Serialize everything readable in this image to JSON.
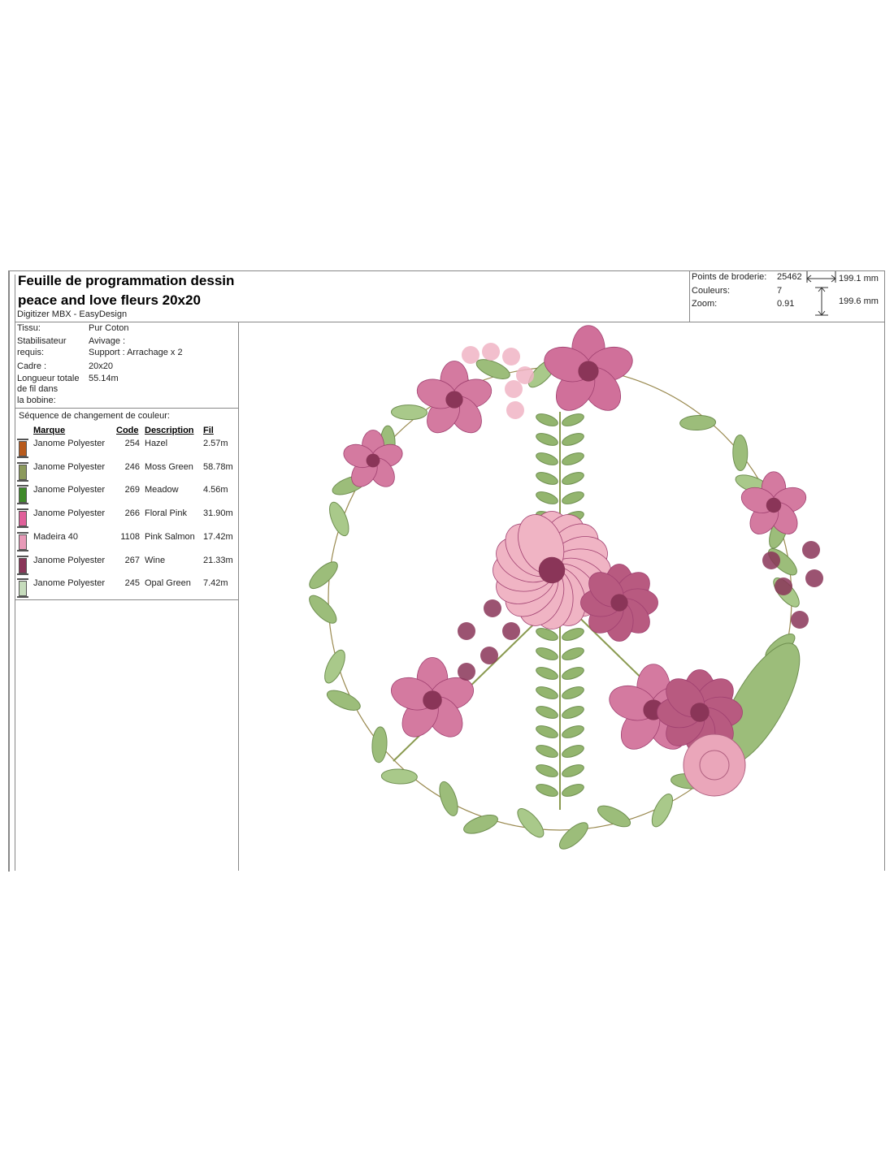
{
  "header": {
    "title_line1": "Feuille de programmation dessin",
    "title_line2": "peace and love fleurs 20x20",
    "subtitle": "Digitizer MBX - EasyDesign"
  },
  "stats": {
    "points_label": "Points de broderie:",
    "points_value": "25462",
    "colors_label": "Couleurs:",
    "colors_value": "7",
    "zoom_label": "Zoom:",
    "zoom_value": "0.91",
    "width": "199.1 mm",
    "height": "199.6 mm"
  },
  "info": {
    "tissu_label": "Tissu:",
    "tissu_value": "Pur Coton",
    "stab_label1": "Stabilisateur",
    "stab_label2": "requis:",
    "stab_value1": "Avivage :",
    "stab_value2": "Support : Arrachage x 2",
    "cadre_label": "Cadre :",
    "cadre_value": "20x20",
    "longueur_label1": "Longueur totale",
    "longueur_label2": "de fil dans",
    "longueur_label3": "la bobine:",
    "longueur_value": "55.14m"
  },
  "sequence": {
    "title": "Séquence de changement de couleur:",
    "headers": {
      "marque": "Marque",
      "code": "Code",
      "description": "Description",
      "fil": "Fil"
    },
    "rows": [
      {
        "marque": "Janome Polyester",
        "code": "254",
        "description": "Hazel",
        "fil": "2.57m",
        "color": "#b85a1c"
      },
      {
        "marque": "Janome Polyester",
        "code": "246",
        "description": "Moss Green",
        "fil": "58.78m",
        "color": "#8c9a5c"
      },
      {
        "marque": "Janome Polyester",
        "code": "269",
        "description": "Meadow",
        "fil": "4.56m",
        "color": "#3f8a2a"
      },
      {
        "marque": "Janome Polyester",
        "code": "266",
        "description": "Floral Pink",
        "fil": "31.90m",
        "color": "#e0609a"
      },
      {
        "marque": "Madeira 40",
        "code": "1108",
        "description": "Pink Salmon",
        "fil": "17.42m",
        "color": "#e89ab8"
      },
      {
        "marque": "Janome Polyester",
        "code": "267",
        "description": "Wine",
        "fil": "21.33m",
        "color": "#8a3558"
      },
      {
        "marque": "Janome Polyester",
        "code": "245",
        "description": "Opal Green",
        "fil": "7.42m",
        "color": "#c6dcbc"
      }
    ]
  }
}
